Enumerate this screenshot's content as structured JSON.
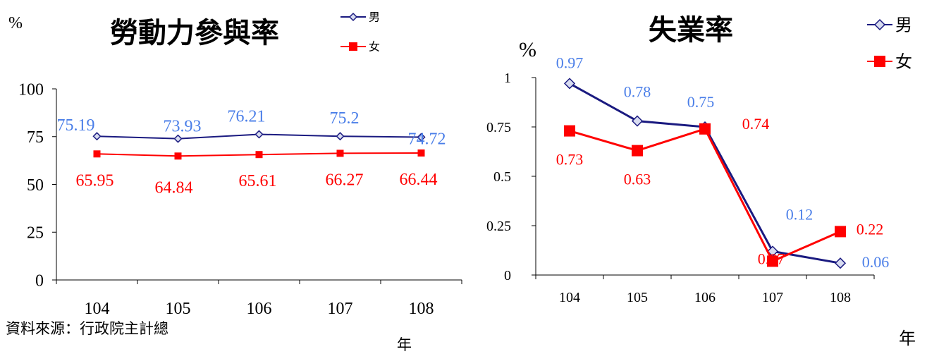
{
  "source_note": "資料來源：行政院主計總",
  "colors": {
    "male": "#1a1a80",
    "female": "#ff0000",
    "male_label": "#4a7ee8",
    "female_label": "#ff0000",
    "marker_fill": "#d8dcf0"
  },
  "chart_data": [
    {
      "type": "line",
      "title": "勞動力參與率",
      "ylabel": "%",
      "xlabel": "年",
      "categories": [
        "104",
        "105",
        "106",
        "107",
        "108"
      ],
      "ylim": [
        0,
        100
      ],
      "yticks": [
        "0",
        "25",
        "50",
        "75",
        "100"
      ],
      "grid": false,
      "legend": "top-right",
      "series": [
        {
          "name": "男",
          "marker": "diamond",
          "values": [
            75.19,
            73.93,
            76.21,
            75.2,
            74.72
          ],
          "labels": [
            "75.19",
            "73.93",
            "76.21",
            "75.2",
            "74.72"
          ]
        },
        {
          "name": "女",
          "marker": "square",
          "values": [
            65.95,
            64.84,
            65.61,
            66.27,
            66.44
          ],
          "labels": [
            "65.95",
            "64.84",
            "65.61",
            "66.27",
            "66.44"
          ]
        }
      ]
    },
    {
      "type": "line",
      "title": "失業率",
      "ylabel": "%",
      "xlabel": "年",
      "categories": [
        "104",
        "105",
        "106",
        "107",
        "108"
      ],
      "ylim": [
        0,
        1
      ],
      "yticks": [
        "0",
        "0.25",
        "0.5",
        "0.75",
        "1"
      ],
      "grid": false,
      "legend": "top-right",
      "series": [
        {
          "name": "男",
          "marker": "diamond",
          "values": [
            0.97,
            0.78,
            0.75,
            0.12,
            0.06
          ],
          "labels": [
            "0.97",
            "0.78",
            "0.75",
            "0.12",
            "0.06"
          ]
        },
        {
          "name": "女",
          "marker": "square",
          "values": [
            0.73,
            0.63,
            0.74,
            0.07,
            0.22
          ],
          "labels": [
            "0.73",
            "0.63",
            "0.74",
            "0.07",
            "0.22"
          ]
        }
      ]
    }
  ]
}
